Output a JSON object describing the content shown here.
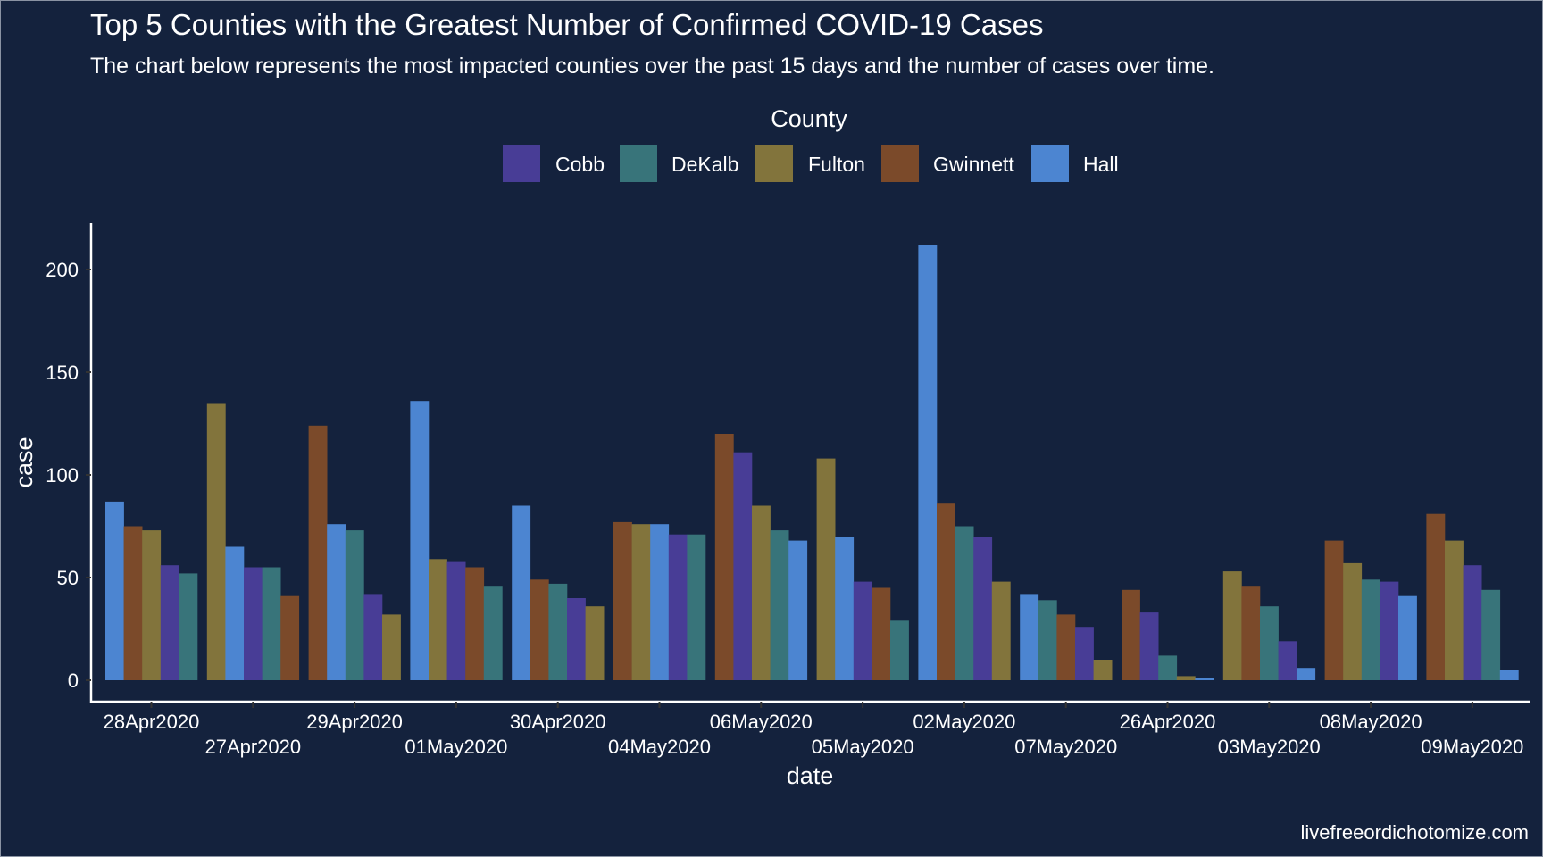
{
  "chart_data": {
    "type": "bar",
    "title": "Top 5 Counties with the Greatest Number of Confirmed COVID-19 Cases",
    "subtitle": "The chart below represents the most impacted counties over the past 15 days and the number of cases over time.",
    "xlabel": "date",
    "ylabel": "case",
    "ylim": [
      0,
      222
    ],
    "yticks": [
      0,
      50,
      100,
      150,
      200
    ],
    "grid": false,
    "legend": {
      "title": "County",
      "position": "top",
      "entries": [
        {
          "name": "Cobb",
          "color": "#483D96"
        },
        {
          "name": "DeKalb",
          "color": "#38747A"
        },
        {
          "name": "Fulton",
          "color": "#82743C"
        },
        {
          "name": "Gwinnett",
          "color": "#7B4A2A"
        },
        {
          "name": "Hall",
          "color": "#4C85D1"
        }
      ]
    },
    "categories": [
      "28Apr2020",
      "27Apr2020",
      "29Apr2020",
      "01May2020",
      "30Apr2020",
      "04May2020",
      "06May2020",
      "05May2020",
      "02May2020",
      "07May2020",
      "26Apr2020",
      "03May2020",
      "08May2020",
      "09May2020"
    ],
    "series": [
      {
        "name": "Cobb",
        "values": [
          56,
          55,
          42,
          58,
          40,
          71,
          111,
          48,
          70,
          26,
          33,
          19,
          48,
          56
        ]
      },
      {
        "name": "DeKalb",
        "values": [
          52,
          55,
          73,
          46,
          47,
          71,
          73,
          29,
          75,
          39,
          12,
          36,
          49,
          44
        ]
      },
      {
        "name": "Fulton",
        "values": [
          73,
          135,
          32,
          59,
          36,
          76,
          85,
          108,
          48,
          10,
          2,
          53,
          57,
          68
        ]
      },
      {
        "name": "Gwinnett",
        "values": [
          75,
          41,
          124,
          55,
          49,
          77,
          120,
          45,
          86,
          32,
          44,
          46,
          68,
          81
        ]
      },
      {
        "name": "Hall",
        "values": [
          87,
          65,
          76,
          136,
          85,
          76,
          68,
          70,
          212,
          42,
          1,
          6,
          41,
          5
        ]
      }
    ],
    "bar_order_within_group": "descending by value",
    "caption": "livefreeordichotomize.com",
    "background": "#14223D"
  }
}
